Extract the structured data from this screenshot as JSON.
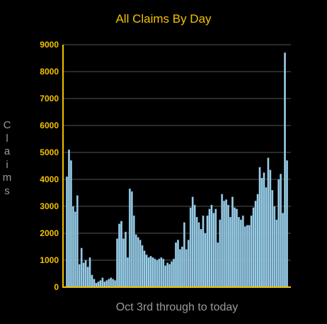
{
  "chart_data": {
    "type": "bar",
    "title": "All Claims By Day",
    "xlabel": "Oct 3rd through to today",
    "ylabel": "Claims",
    "ylim": [
      0,
      9000
    ],
    "yticks": [
      "0",
      "1000",
      "2000",
      "3000",
      "4000",
      "5000",
      "6000",
      "7000",
      "8000",
      "9000"
    ],
    "grid": true,
    "colors": {
      "bar": "#9fcfe6",
      "bar_edge": "#5a8fae",
      "axis": "#f2c200",
      "tick_label": "#f2c200",
      "grid": "#555555",
      "title": "#f2c200",
      "axis_title": "#9a9a9a"
    },
    "values": [
      4100,
      5100,
      4700,
      3000,
      2800,
      3400,
      850,
      1450,
      900,
      1000,
      750,
      1100,
      450,
      300,
      150,
      200,
      250,
      350,
      200,
      250,
      300,
      350,
      300,
      250,
      1800,
      2350,
      2450,
      1800,
      2050,
      1100,
      3650,
      3550,
      2650,
      1950,
      1850,
      1750,
      1550,
      1350,
      1200,
      1100,
      1150,
      1100,
      1050,
      1000,
      1050,
      1100,
      1050,
      800,
      900,
      850,
      950,
      1050,
      1650,
      1750,
      1400,
      1500,
      2400,
      1400,
      1750,
      2950,
      3350,
      3050,
      2600,
      2400,
      2150,
      2650,
      2000,
      2650,
      2900,
      3050,
      2750,
      2900,
      1650,
      2500,
      3450,
      3200,
      3250,
      3050,
      2600,
      3350,
      2950,
      2900,
      2600,
      2500,
      2650,
      2250,
      2300,
      2300,
      2650,
      2950,
      3200,
      3450,
      4450,
      4050,
      4250,
      3700,
      4800,
      4350,
      3600,
      3000,
      2500,
      4000,
      4200,
      2750,
      8700,
      4700
    ]
  }
}
